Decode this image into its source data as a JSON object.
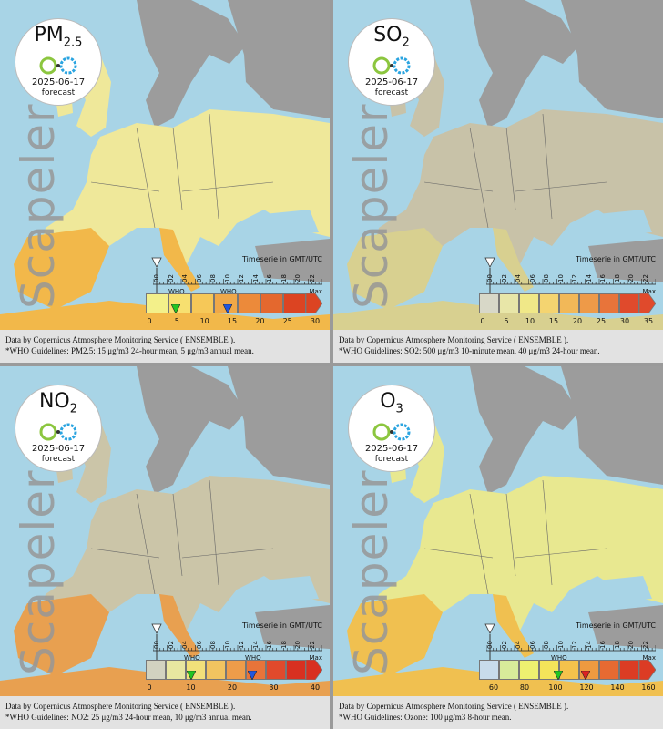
{
  "brand": "Scapeler",
  "forecast_label": "forecast",
  "date": "2025-06-17",
  "timeserie_label": "Timeserie in GMT/UTC",
  "who_label": "WHO",
  "max_label": "Max",
  "hours": [
    "00",
    "02",
    "04",
    "06",
    "08",
    "10",
    "12",
    "14",
    "16",
    "18",
    "20",
    "22"
  ],
  "colors": {
    "sea": "#a8d4e6",
    "land_grey": "#9c9c9c",
    "caption_bg": "#e2e2e2",
    "marker_green": "#22c522",
    "marker_blue": "#2255dd",
    "marker_red": "#dd2222"
  },
  "panels": [
    {
      "pollutant": "PM",
      "sub": "2.5",
      "scale_ticks": [
        "0",
        "5",
        "10",
        "15",
        "20",
        "25",
        "30"
      ],
      "who_values": [
        "5",
        "15"
      ],
      "markers": [
        "green",
        "blue"
      ],
      "credit": "Data by Copernicus Atmosphere Monitoring Service ( ENSEMBLE ).",
      "guideline": "*WHO Guidelines: PM2.5: 15 μg/m3 24-hour mean, 5 μg/m3 annual mean."
    },
    {
      "pollutant": "SO",
      "sub": "2",
      "scale_ticks": [
        "0",
        "5",
        "10",
        "15",
        "20",
        "25",
        "30",
        "35"
      ],
      "who_values": [],
      "markers": [],
      "credit": "Data by Copernicus Atmosphere Monitoring Service ( ENSEMBLE ).",
      "guideline": "*WHO Guidelines: SO2: 500 μg/m3 10-minute mean, 40 μg/m3 24-hour mean."
    },
    {
      "pollutant": "NO",
      "sub": "2",
      "scale_ticks": [
        "0",
        "10",
        "20",
        "30",
        "40"
      ],
      "who_values": [
        "10",
        "25"
      ],
      "markers": [
        "green",
        "blue"
      ],
      "credit": "Data by Copernicus Atmosphere Monitoring Service ( ENSEMBLE ).",
      "guideline": "*WHO Guidelines: NO2: 25 μg/m3 24-hour mean, 10 μg/m3 annual mean."
    },
    {
      "pollutant": "O",
      "sub": "3",
      "scale_ticks": [
        "60",
        "80",
        "100",
        "120",
        "140",
        "160"
      ],
      "who_values": [
        "100"
      ],
      "markers": [
        "green",
        "red"
      ],
      "credit": "Data by Copernicus Atmosphere Monitoring Service ( ENSEMBLE ).",
      "guideline": "*WHO Guidelines: Ozone: 100 μg/m3 8-hour mean."
    }
  ]
}
